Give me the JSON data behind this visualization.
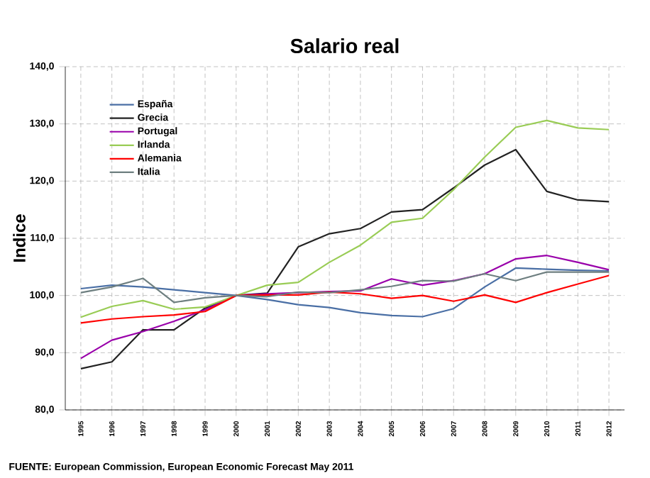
{
  "chart_data": {
    "type": "line",
    "title": "Salario real",
    "ylabel": "Indice",
    "categories": [
      "1995",
      "1996",
      "1997",
      "1998",
      "1999",
      "2000",
      "2001",
      "2002",
      "2003",
      "2004",
      "2005",
      "2006",
      "2007",
      "2008",
      "2009",
      "2010",
      "2011",
      "2012"
    ],
    "series": [
      {
        "name": "España",
        "color": "#4a6fa5",
        "values": [
          101.2,
          101.8,
          101.5,
          101.0,
          100.5,
          100,
          99.3,
          98.4,
          97.9,
          97.0,
          96.5,
          96.3,
          97.7,
          101.5,
          104.8,
          104.6,
          104.4,
          104.3
        ]
      },
      {
        "name": "Grecia",
        "color": "#222222",
        "values": [
          87.2,
          88.4,
          94.0,
          94.0,
          97.8,
          100,
          100.4,
          108.5,
          110.8,
          111.7,
          114.6,
          115.0,
          118.8,
          122.8,
          125.5,
          118.2,
          116.7,
          116.4
        ]
      },
      {
        "name": "Portugal",
        "color": "#9900aa",
        "values": [
          89.0,
          92.2,
          93.7,
          95.5,
          97.5,
          100,
          100.3,
          100.5,
          100.7,
          100.8,
          102.9,
          101.8,
          102.6,
          103.8,
          106.4,
          107.0,
          105.8,
          104.5
        ]
      },
      {
        "name": "Irlanda",
        "color": "#99cc55",
        "values": [
          96.2,
          98.1,
          99.1,
          97.6,
          98.0,
          100,
          101.8,
          102.3,
          105.8,
          108.8,
          112.8,
          113.5,
          118.5,
          124.2,
          129.4,
          130.6,
          129.3,
          129.0
        ]
      },
      {
        "name": "Alemania",
        "color": "#ff0000",
        "values": [
          95.2,
          95.9,
          96.3,
          96.6,
          97.2,
          100,
          100.1,
          100.1,
          100.6,
          100.3,
          99.5,
          100.0,
          99.0,
          100.1,
          98.8,
          100.5,
          102.0,
          103.5
        ]
      },
      {
        "name": "Italia",
        "color": "#6e7f80",
        "values": [
          100.5,
          101.5,
          103.0,
          98.8,
          99.6,
          100,
          99.8,
          100.6,
          100.5,
          101.0,
          101.6,
          102.6,
          102.5,
          103.8,
          102.6,
          104.1,
          104.1,
          104.1
        ]
      }
    ],
    "ylim": [
      80,
      140
    ],
    "yticks": [
      {
        "value": 80,
        "label": "80,0"
      },
      {
        "value": 90,
        "label": "90,0"
      },
      {
        "value": 100,
        "label": "100,0"
      },
      {
        "value": 110,
        "label": "110,0"
      },
      {
        "value": 120,
        "label": "120,0"
      },
      {
        "value": 130,
        "label": "130,0"
      },
      {
        "value": 140,
        "label": "140,0"
      }
    ],
    "grid": true,
    "legend": "top left",
    "marker": "none",
    "line_style": "solid",
    "annotations": [
      "FUENTE: European Commission, European  Economic Forecast May 2011"
    ]
  }
}
